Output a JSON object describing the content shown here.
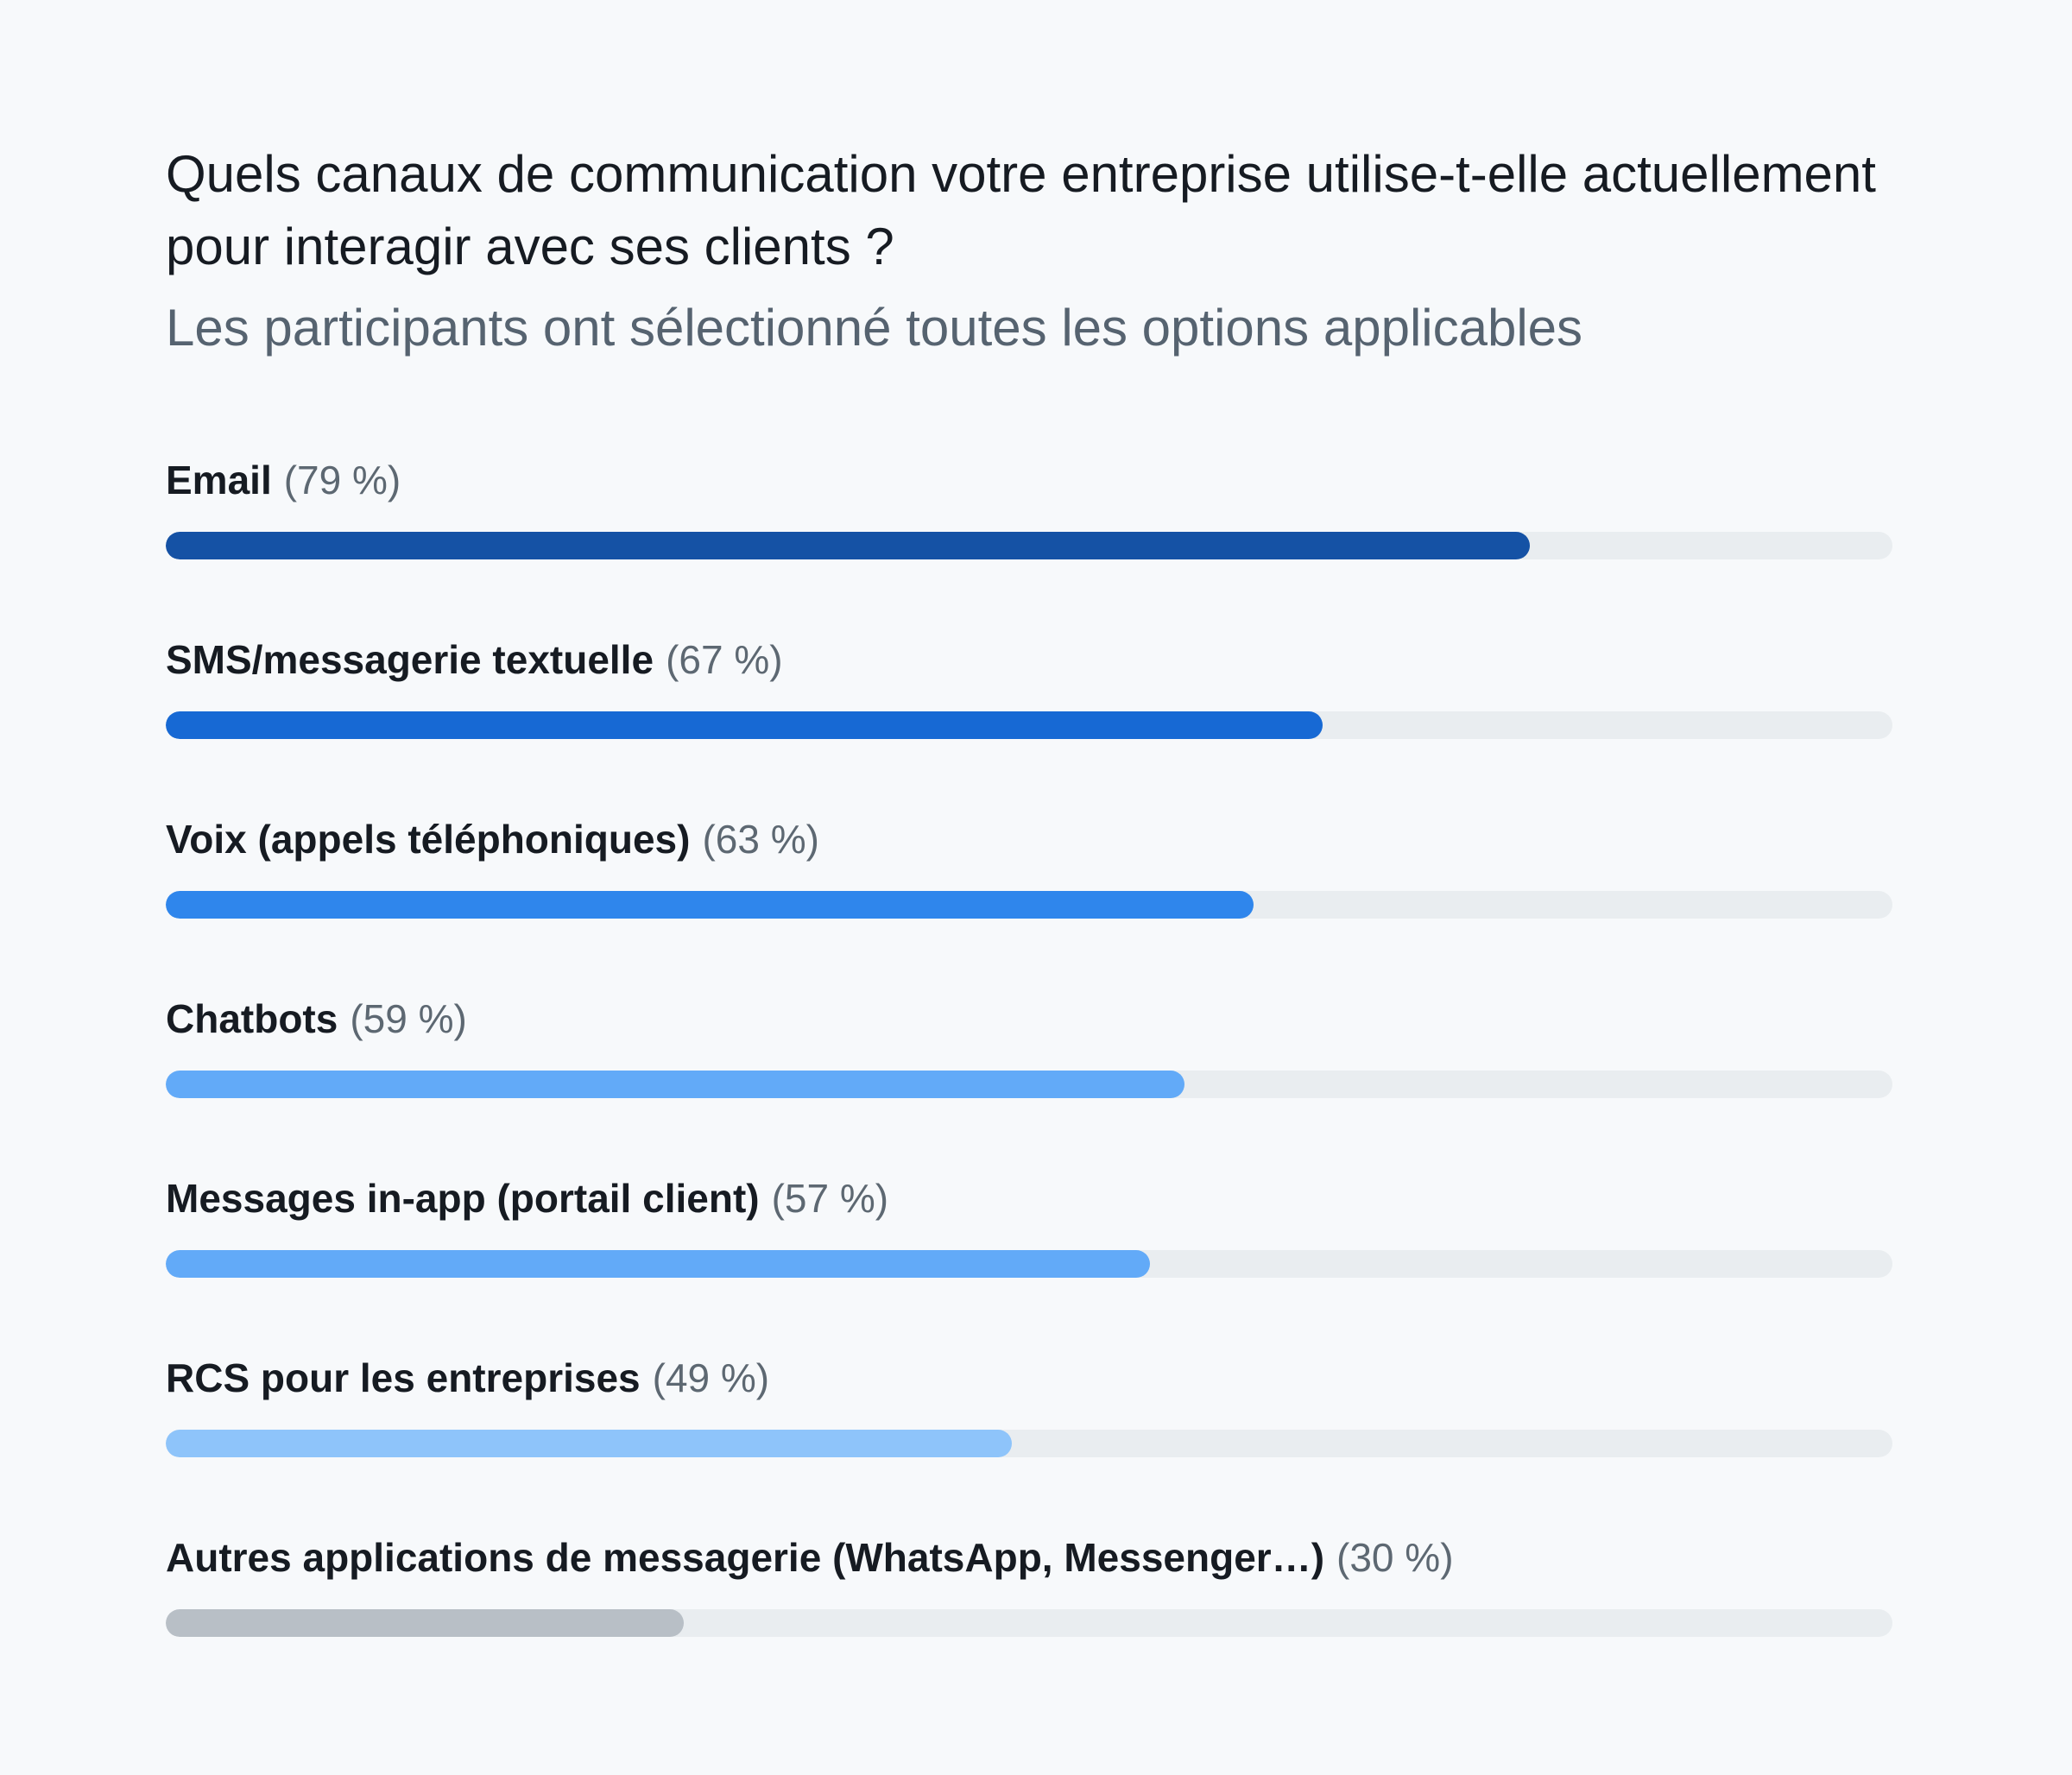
{
  "chart_data": {
    "type": "bar",
    "orientation": "horizontal",
    "title": "Quels canaux de communication votre entreprise utilise-t-elle actuellement pour interagir avec ses clients ?",
    "subtitle": "Les participants ont sélectionné toutes les options applicables",
    "xlim": [
      0,
      100
    ],
    "unit": "%",
    "categories": [
      "Email",
      "SMS/messagerie textuelle",
      "Voix (appels téléphoniques)",
      "Chatbots",
      "Messages in-app (portail client)",
      "RCS pour les entreprises",
      "Autres applications de messagerie (WhatsApp, Messenger…)"
    ],
    "values": [
      79,
      67,
      63,
      59,
      57,
      49,
      30
    ],
    "value_labels": [
      "(79 %)",
      "(67 %)",
      "(63 %)",
      "(59 %)",
      "(57 %)",
      "(49 %)",
      "(30 %)"
    ],
    "colors": [
      "#1552a5",
      "#1769d4",
      "#2f86ec",
      "#62aaf8",
      "#62aaf8",
      "#8ec4fa",
      "#b8bfc6"
    ],
    "track_color": "#e9edf0"
  }
}
